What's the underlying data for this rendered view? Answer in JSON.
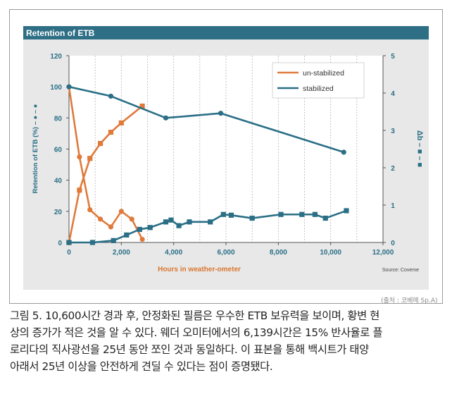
{
  "chart_data": {
    "type": "line",
    "title": "Retention of ETB",
    "xlabel": "Hours in weather-ometer",
    "ylabel_left": "Retention of ETB (%) – ● – ●",
    "ylabel_right": "Δb – ■ – ■",
    "xlim": [
      0,
      12000
    ],
    "ylim_left": [
      0,
      120
    ],
    "ylim_right": [
      0,
      5
    ],
    "x_ticks": [
      0,
      2000,
      4000,
      6000,
      8000,
      10000,
      12000
    ],
    "x_tick_labels": [
      "0",
      "2,000",
      "4,000",
      "6,000",
      "8,000",
      "10,000",
      "12,000"
    ],
    "y_left_ticks": [
      0,
      20,
      40,
      60,
      80,
      100,
      120
    ],
    "y_right_ticks": [
      0,
      1,
      2,
      3,
      4,
      5
    ],
    "grid": "vertical dashed",
    "legend_position": "top-right",
    "source": "Source: Coveme",
    "series": [
      {
        "name": "un-stabilized",
        "color": "#e07a3a",
        "marker": "circle",
        "axis": "left",
        "x": [
          0,
          400,
          800,
          1200,
          1600,
          2000,
          2400,
          2800
        ],
        "y": [
          100,
          55,
          21,
          15,
          10,
          20,
          15,
          2
        ]
      },
      {
        "name": "un-stabilized",
        "color": "#e07a3a",
        "marker": "square",
        "axis": "right",
        "x": [
          0,
          400,
          800,
          1200,
          1600,
          2000,
          2800
        ],
        "y": [
          0,
          1.4,
          2.25,
          2.65,
          2.95,
          3.2,
          3.65
        ]
      },
      {
        "name": "stabilized",
        "color": "#2a6f86",
        "marker": "circle",
        "axis": "left",
        "x": [
          0,
          1600,
          3700,
          5800,
          10500
        ],
        "y": [
          100,
          94,
          80,
          83,
          58
        ]
      },
      {
        "name": "stabilized",
        "color": "#2a6f86",
        "marker": "square",
        "axis": "right",
        "x": [
          0,
          900,
          1700,
          2200,
          2700,
          3100,
          3700,
          3900,
          4200,
          4600,
          5400,
          5900,
          6200,
          7000,
          8100,
          8900,
          9400,
          9800,
          10600
        ],
        "y": [
          0,
          0,
          0.05,
          0.2,
          0.35,
          0.4,
          0.55,
          0.6,
          0.45,
          0.55,
          0.55,
          0.75,
          0.73,
          0.65,
          0.75,
          0.75,
          0.75,
          0.65,
          0.85
        ]
      }
    ]
  },
  "legend": {
    "items": [
      {
        "label": "un-stabilized",
        "color": "#e07a3a"
      },
      {
        "label": "stabilized",
        "color": "#2a6f86"
      }
    ]
  },
  "colors": {
    "title_bar": "#2f6f86",
    "panel_bg": "#e8e8e8",
    "grid": "#b5b5b5",
    "axis_text": "#2a6f86",
    "xlabel_text": "#d9772f"
  },
  "credit": "(출처 : 코베메 Sp.A)",
  "caption_lines": [
    "그림 5. 10,600시간 경과 후, 안정화된 필름은 우수한 ETB 보유력을 보이며, 황변 현",
    "상의 증가가 적은 것을 알 수 있다. 웨더 오미터에서의 6,139시간은 15% 반사율로 플",
    "로리다의 직사광선을 25년 동안 쪼인 것과 동일하다. 이 표본을 통해 백시트가 태양",
    "아래서 25년 이상을 안전하게 견딜 수 있다는 점이 증명됐다."
  ]
}
